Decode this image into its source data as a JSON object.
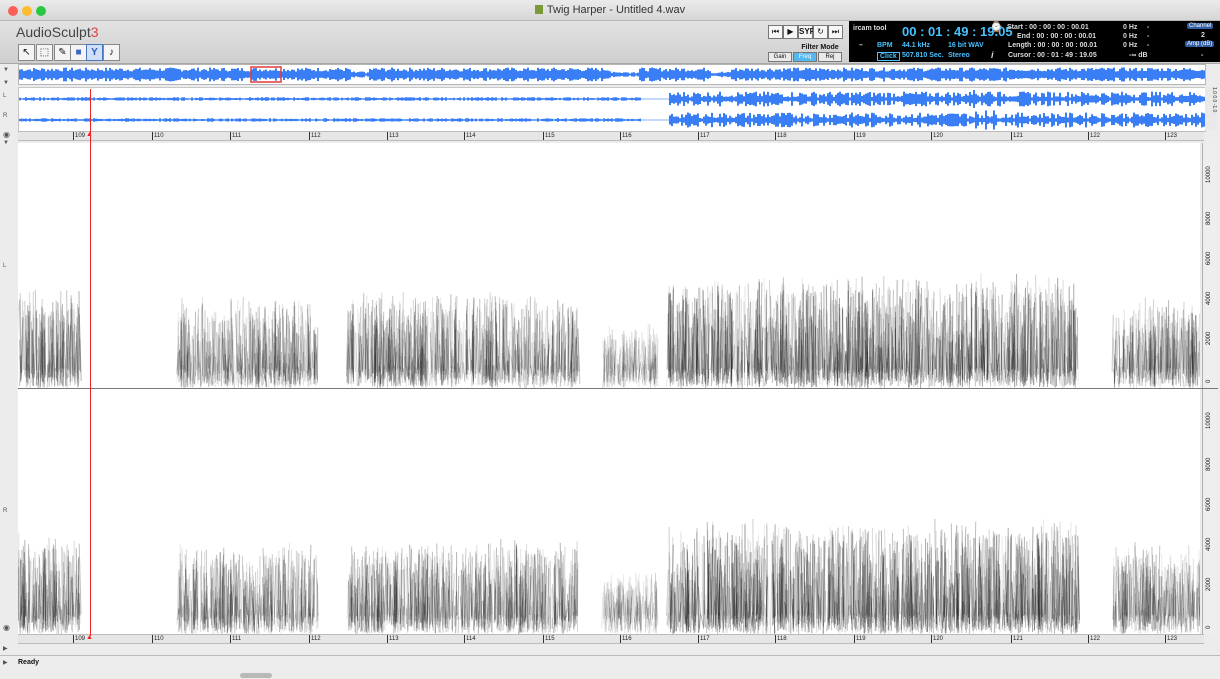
{
  "window": {
    "title": "Twig Harper - Untitled 4.wav",
    "app_name": "AudioSculpt",
    "app_version": "3"
  },
  "tools": [
    {
      "name": "pointer",
      "glyph": "↖"
    },
    {
      "name": "marquee",
      "glyph": "⬚"
    },
    {
      "name": "pencil",
      "glyph": "✎"
    },
    {
      "name": "rect-fill",
      "glyph": "■"
    },
    {
      "name": "filter",
      "glyph": "Y"
    },
    {
      "name": "note",
      "glyph": "♪"
    }
  ],
  "transport": {
    "syn_label": "SYP",
    "filter_mode_label": "Filter Mode",
    "gain_label": "Gain",
    "freq_label": "Freq",
    "rej_label": "Rej"
  },
  "panel": {
    "logo": "ircam tool",
    "time": "00 : 01 : 49 : 19.05",
    "dash": "–",
    "bpm_label": "BPM",
    "click_label": "Click",
    "sample_rate": "44.1 kHz",
    "bit_depth": "16 bit WAV",
    "duration": "507.810 Sec.",
    "channels_mode": "Stereo",
    "start": "Start : 00 : 00 : 00 : 00.01",
    "end": "End : 00 : 00 : 00 : 00.01",
    "length": "Length : 00 : 00 : 00 : 00.01",
    "cursor": "Cursor : 00 : 01 : 49 : 19.05",
    "hz1": "0 Hz",
    "hz2": "0 Hz",
    "hz3": "0 Hz",
    "db": "-∞ dB",
    "dash_small": "-",
    "channel_label": "Channel",
    "channel_value": "2",
    "amp_label": "Amp (dB)",
    "amp_value": "-"
  },
  "ruler_ticks": [
    "109",
    "110",
    "111",
    "112",
    "113",
    "114",
    "115",
    "116",
    "117",
    "118",
    "119",
    "120",
    "121",
    "122",
    "123"
  ],
  "freq_ticks": [
    "10000",
    "8000",
    "6000",
    "4000",
    "2000",
    "0"
  ],
  "channel_labels": {
    "left": "L",
    "right": "R"
  },
  "status": {
    "text": "Ready"
  },
  "colors": {
    "waveform": "#3a7ef5",
    "playhead": "#e22222",
    "selection": "#e23a3a"
  }
}
